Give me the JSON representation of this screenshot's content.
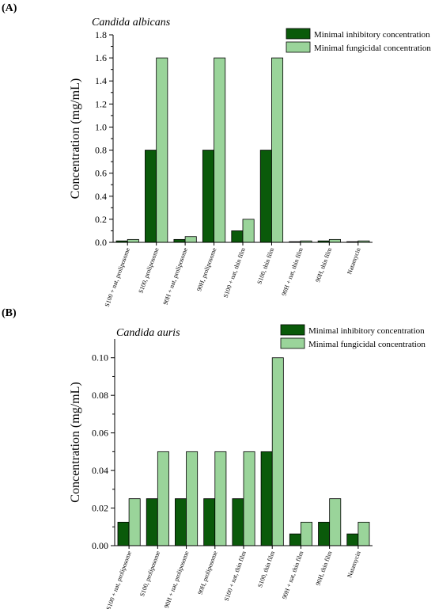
{
  "panels": [
    {
      "label": "(A)"
    },
    {
      "label": "(B)"
    }
  ],
  "colors": {
    "mic": "#0a5a0a",
    "mfc": "#9ad49a",
    "stroke": "#000000"
  },
  "chart_data": [
    {
      "type": "bar",
      "title": "Candida albicans",
      "ylabel": "Concentration (mg/mL)",
      "xlabel": "",
      "ylim": [
        0,
        1.8
      ],
      "yticks": [
        "0.0",
        "0.2",
        "0.4",
        "0.6",
        "0.8",
        "1.0",
        "1.2",
        "1.4",
        "1.6",
        "1.8"
      ],
      "legend_position": "top-right",
      "grid": false,
      "categories": [
        "S100 + nat, proliposome",
        "S100, proliposome",
        "90H + nat, proliposome",
        "90H, proliposome",
        "S100 + nat, thin film",
        "S100, thin film",
        "90H + nat, thin film",
        "90H, thin film",
        "Natamycin"
      ],
      "series": [
        {
          "name": "Minimal inhibitory concentration",
          "values": [
            0.0125,
            0.8,
            0.025,
            0.8,
            0.1,
            0.8,
            0.006,
            0.0125,
            0.006
          ]
        },
        {
          "name": "Minimal fungicidal concentration",
          "values": [
            0.025,
            1.6,
            0.05,
            1.6,
            0.2,
            1.6,
            0.0125,
            0.025,
            0.0125
          ]
        }
      ]
    },
    {
      "type": "bar",
      "title": "Candida auris",
      "ylabel": "Concentration (mg/mL)",
      "xlabel": "",
      "ylim": [
        0,
        0.11
      ],
      "yticks": [
        "0.00",
        "0.02",
        "0.04",
        "0.06",
        "0.08",
        "0.10"
      ],
      "legend_position": "top-right",
      "grid": false,
      "categories": [
        "S100 + nat, proliposome",
        "S100, proliposome",
        "90H + nat, proliposome",
        "90H, proliposome",
        "S100 + nat, thin film",
        "S100, thin film",
        "90H + nat, thin film",
        "90H, thin film",
        "Natamycin"
      ],
      "series": [
        {
          "name": "Minimal inhibitory concentration",
          "values": [
            0.0125,
            0.025,
            0.025,
            0.025,
            0.025,
            0.05,
            0.00625,
            0.0125,
            0.00625
          ]
        },
        {
          "name": "Minimal fungicidal concentration",
          "values": [
            0.025,
            0.05,
            0.05,
            0.05,
            0.05,
            0.1,
            0.0125,
            0.025,
            0.0125
          ]
        }
      ]
    }
  ]
}
